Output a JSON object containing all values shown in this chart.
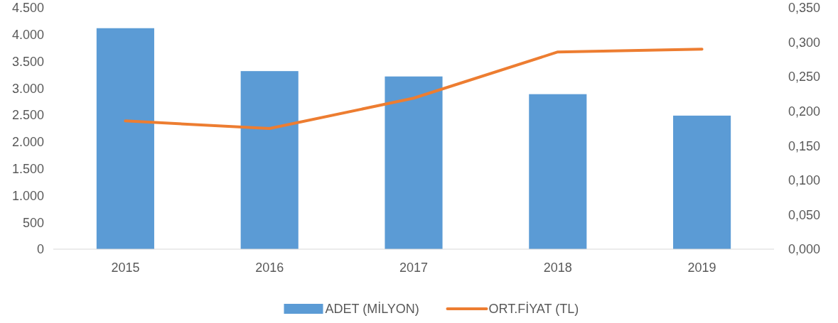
{
  "chart_data": {
    "type": "bar",
    "categories": [
      "2015",
      "2016",
      "2017",
      "2018",
      "2019"
    ],
    "series": [
      {
        "name": "ADET (MİLYON)",
        "color": "#5b9bd5",
        "values": [
          4120,
          3320,
          3220,
          2890,
          2490
        ]
      },
      {
        "name": "ORT.FİYAT (TL)",
        "type": "line",
        "axis": "y2",
        "color": "#ed7d31",
        "values": [
          0.186,
          0.175,
          0.219,
          0.286,
          0.29
        ]
      }
    ],
    "ylim": [
      0,
      4500
    ],
    "yticks": [
      0,
      500,
      {
        "value": 1000,
        "label": "1.000"
      },
      {
        "value": 1500,
        "label": "1.500"
      },
      {
        "value": 2000,
        "label": "2.000"
      },
      {
        "value": 2500,
        "label": "2.500"
      },
      {
        "value": 3000,
        "label": "3.000"
      },
      {
        "value": 3500,
        "label": "3.500"
      },
      {
        "value": 4000,
        "label": "4.000"
      },
      {
        "value": 4500,
        "label": "4.500"
      }
    ],
    "y2lim": [
      0,
      0.35
    ],
    "y2ticks": [
      {
        "value": 0,
        "label": "0,000"
      },
      {
        "value": 0.05,
        "label": "0,050"
      },
      {
        "value": 0.1,
        "label": "0,100"
      },
      {
        "value": 0.15,
        "label": "0,150"
      },
      {
        "value": 0.2,
        "label": "0,200"
      },
      {
        "value": 0.25,
        "label": "0,250"
      },
      {
        "value": 0.3,
        "label": "0,300"
      },
      {
        "value": 0.35,
        "label": "0,350"
      }
    ],
    "grid": false,
    "legend": "bottom"
  }
}
